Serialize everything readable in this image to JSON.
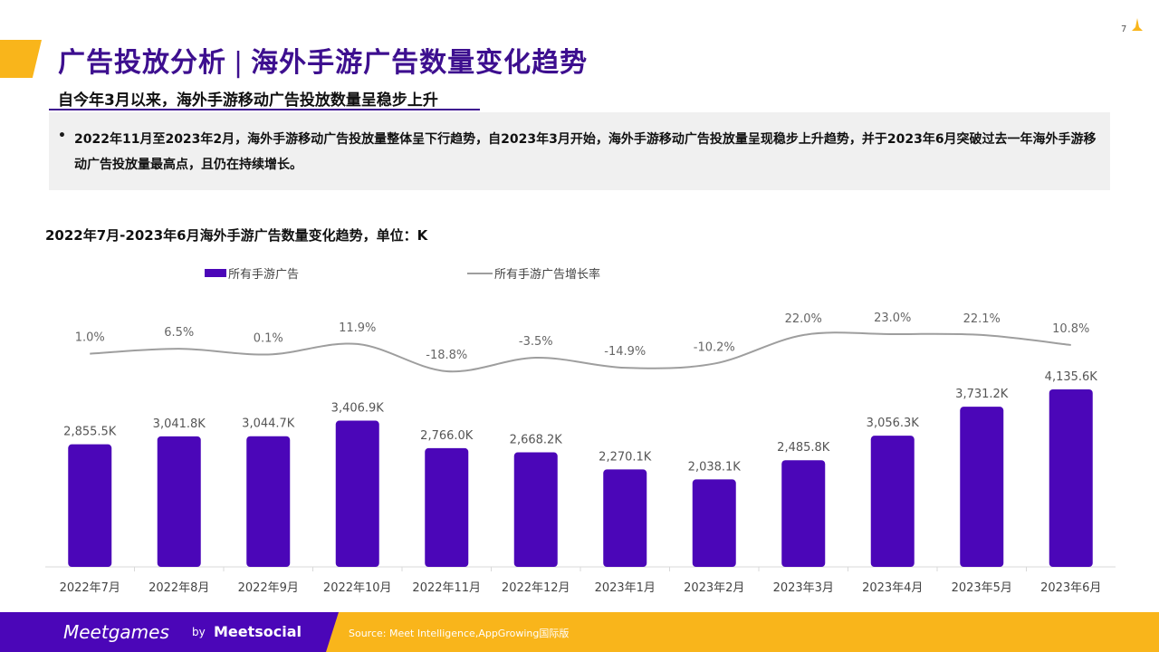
{
  "page": {
    "number": "7"
  },
  "header": {
    "title_part1": "广告投放分析",
    "title_separator": "|",
    "title_part2": "海外手游广告数量变化趋势",
    "subtitle": "自今年3月以来，海外手游移动广告投放数量呈稳步上升"
  },
  "summary": {
    "bullet": "•",
    "text": "2022年11月至2023年2月，海外手游移动广告投放量整体呈下行趋势，自2023年3月开始，海外手游移动广告投放量呈现稳步上升趋势，并于2023年6月突破过去一年海外手游移动广告投放量最高点，且仍在持续增长。"
  },
  "chart_data": {
    "type": "bar",
    "title": "2022年7月-2023年6月海外手游广告数量变化趋势，单位：K",
    "categories": [
      "2022年7月",
      "2022年8月",
      "2022年9月",
      "2022年10月",
      "2022年11月",
      "2022年12月",
      "2023年1月",
      "2023年2月",
      "2023年3月",
      "2023年4月",
      "2023年5月",
      "2023年6月"
    ],
    "series": [
      {
        "name": "所有手游广告",
        "type": "bar",
        "color": "#4b06b8",
        "values": [
          2855.5,
          3041.8,
          3044.7,
          3406.9,
          2766.0,
          2668.2,
          2270.1,
          2038.1,
          2485.8,
          3056.3,
          3731.2,
          4135.6
        ],
        "labels": [
          "2,855.5K",
          "3,041.8K",
          "3,044.7K",
          "3,406.9K",
          "2,766.0K",
          "2,668.2K",
          "2,270.1K",
          "2,038.1K",
          "2,485.8K",
          "3,056.3K",
          "3,731.2K",
          "4,135.6K"
        ]
      },
      {
        "name": "所有手游广告增长率",
        "type": "line",
        "color": "#9e9e9e",
        "values": [
          1.0,
          6.5,
          0.1,
          11.9,
          -18.8,
          -3.5,
          -14.9,
          -10.2,
          22.0,
          23.0,
          22.1,
          10.8
        ],
        "labels": [
          "1.0%",
          "6.5%",
          "0.1%",
          "11.9%",
          "-18.8%",
          "-3.5%",
          "-14.9%",
          "-10.2%",
          "22.0%",
          "23.0%",
          "22.1%",
          "10.8%"
        ]
      }
    ],
    "ylim": [
      0,
      4500
    ],
    "y2lim": [
      -60,
      35
    ],
    "legend": "top-left",
    "grid": false
  },
  "footer": {
    "brand_meetgames": "Meetgames",
    "by": "by",
    "brand_meetsocial": "Meetsocial",
    "source": "Source: Meet Intelligence,AppGrowing国际版"
  }
}
